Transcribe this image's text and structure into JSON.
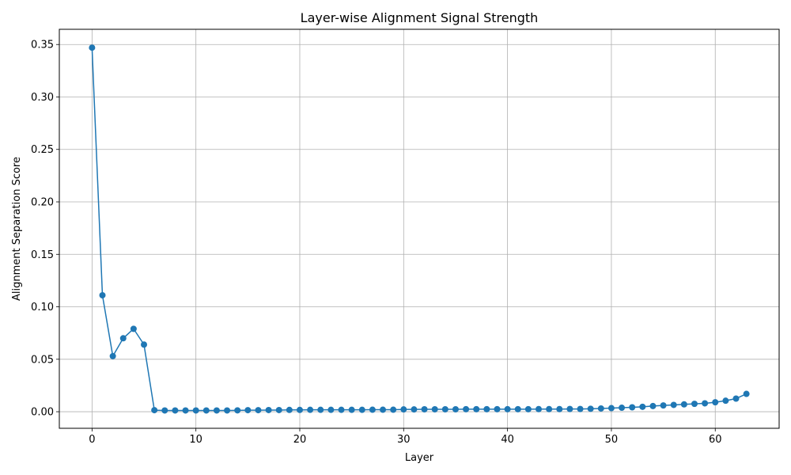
{
  "chart_data": {
    "type": "line",
    "title": "Layer-wise Alignment Signal Strength",
    "xlabel": "Layer",
    "ylabel": "Alignment Separation Score",
    "xlim": [
      -3.15,
      66.15
    ],
    "ylim": [
      -0.0158,
      0.3645
    ],
    "xticks": [
      0,
      10,
      20,
      30,
      40,
      50,
      60
    ],
    "yticks": [
      0.0,
      0.05,
      0.1,
      0.15,
      0.2,
      0.25,
      0.3,
      0.35
    ],
    "ytick_labels": [
      "0.00",
      "0.05",
      "0.10",
      "0.15",
      "0.20",
      "0.25",
      "0.30",
      "0.35"
    ],
    "grid": true,
    "color": "#1f77b4",
    "marker": "circle",
    "series": [
      {
        "x": [
          0,
          1,
          2,
          3,
          4,
          5,
          6,
          7,
          8,
          9,
          10,
          11,
          12,
          13,
          14,
          15,
          16,
          17,
          18,
          19,
          20,
          21,
          22,
          23,
          24,
          25,
          26,
          27,
          28,
          29,
          30,
          31,
          32,
          33,
          34,
          35,
          36,
          37,
          38,
          39,
          40,
          41,
          42,
          43,
          44,
          45,
          46,
          47,
          48,
          49,
          50,
          51,
          52,
          53,
          54,
          55,
          56,
          57,
          58,
          59,
          60,
          61,
          62,
          63
        ],
        "y": [
          0.347,
          0.111,
          0.053,
          0.07,
          0.079,
          0.064,
          0.0015,
          0.0012,
          0.0012,
          0.0012,
          0.0012,
          0.0012,
          0.0012,
          0.0012,
          0.0013,
          0.0015,
          0.0015,
          0.0016,
          0.0016,
          0.0017,
          0.0017,
          0.0018,
          0.0018,
          0.0018,
          0.0018,
          0.0018,
          0.0018,
          0.0019,
          0.0019,
          0.0019,
          0.0022,
          0.0022,
          0.0023,
          0.0023,
          0.0023,
          0.0023,
          0.0024,
          0.0024,
          0.0024,
          0.0024,
          0.0024,
          0.0024,
          0.0024,
          0.0025,
          0.0025,
          0.0025,
          0.0026,
          0.0026,
          0.0028,
          0.0031,
          0.0034,
          0.0038,
          0.0042,
          0.0047,
          0.0054,
          0.006,
          0.0065,
          0.007,
          0.0075,
          0.008,
          0.009,
          0.0105,
          0.0125,
          0.017
        ]
      }
    ]
  }
}
